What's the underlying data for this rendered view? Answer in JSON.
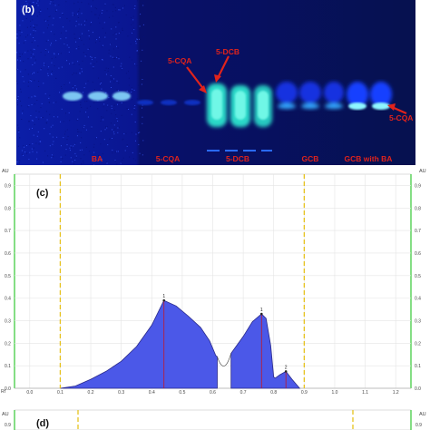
{
  "panel_b": {
    "label": "(b)",
    "lane_labels": [
      "BA",
      "5-CQA",
      "5-DCB",
      "GCB",
      "GCB with BA"
    ],
    "annotations": [
      "5-CQA",
      "5-DCB",
      "5-CQA"
    ],
    "colors": {
      "background": "#0a1494",
      "bright_band": "#4ff0d8",
      "band": "#1a4cf0",
      "label": "#e0231c"
    }
  },
  "panel_c": {
    "label": "(c)",
    "axis_unit_left": "AU",
    "axis_unit_right": "AU",
    "rf_label": "Rf",
    "peak_labels": [
      "1",
      "1",
      "2"
    ],
    "chart_data": {
      "type": "area",
      "x_ticks": [
        "0.0",
        "0.1",
        "0.2",
        "0.3",
        "0.4",
        "0.5",
        "0.6",
        "0.7",
        "0.8",
        "0.9",
        "1.0",
        "1.1",
        "1.2"
      ],
      "y_ticks": [
        "0.0",
        "0.1",
        "0.2",
        "0.3",
        "0.4",
        "0.5",
        "0.6",
        "0.7",
        "0.8",
        "0.9"
      ],
      "xlim": [
        -0.05,
        1.25
      ],
      "ylim": [
        0,
        0.95
      ],
      "boundary_lines": [
        0.1,
        0.9
      ],
      "series": [
        {
          "values": [
            [
              0.1,
              0.0
            ],
            [
              0.15,
              0.01
            ],
            [
              0.2,
              0.04
            ],
            [
              0.25,
              0.075
            ],
            [
              0.3,
              0.12
            ],
            [
              0.35,
              0.185
            ],
            [
              0.4,
              0.28
            ],
            [
              0.44,
              0.39
            ],
            [
              0.48,
              0.365
            ],
            [
              0.52,
              0.32
            ],
            [
              0.56,
              0.27
            ],
            [
              0.59,
              0.21
            ],
            [
              0.61,
              0.145
            ],
            [
              0.615,
              0.14
            ],
            [
              0.615,
              0.0
            ]
          ]
        },
        {
          "values": [
            [
              0.66,
              0.0
            ],
            [
              0.66,
              0.155
            ],
            [
              0.7,
              0.23
            ],
            [
              0.73,
              0.295
            ],
            [
              0.76,
              0.33
            ],
            [
              0.775,
              0.31
            ],
            [
              0.79,
              0.19
            ],
            [
              0.8,
              0.05
            ],
            [
              0.805,
              0.045
            ],
            [
              0.82,
              0.06
            ],
            [
              0.84,
              0.075
            ],
            [
              0.86,
              0.04
            ],
            [
              0.885,
              0.0
            ]
          ]
        }
      ],
      "gaps": [
        [
          0.615,
          0.66
        ]
      ],
      "peaks": [
        {
          "label": "1",
          "x": 0.44,
          "y": 0.39
        },
        {
          "label": "1",
          "x": 0.76,
          "y": 0.33
        },
        {
          "label": "2",
          "x": 0.84,
          "y": 0.075
        }
      ],
      "fill_color": "#4b58e8",
      "line_color": "#2a2a8a"
    }
  },
  "panel_d": {
    "label": "(d)",
    "axis_unit_left": "AU",
    "axis_unit_right": "AU",
    "top_tick": "0.9"
  }
}
